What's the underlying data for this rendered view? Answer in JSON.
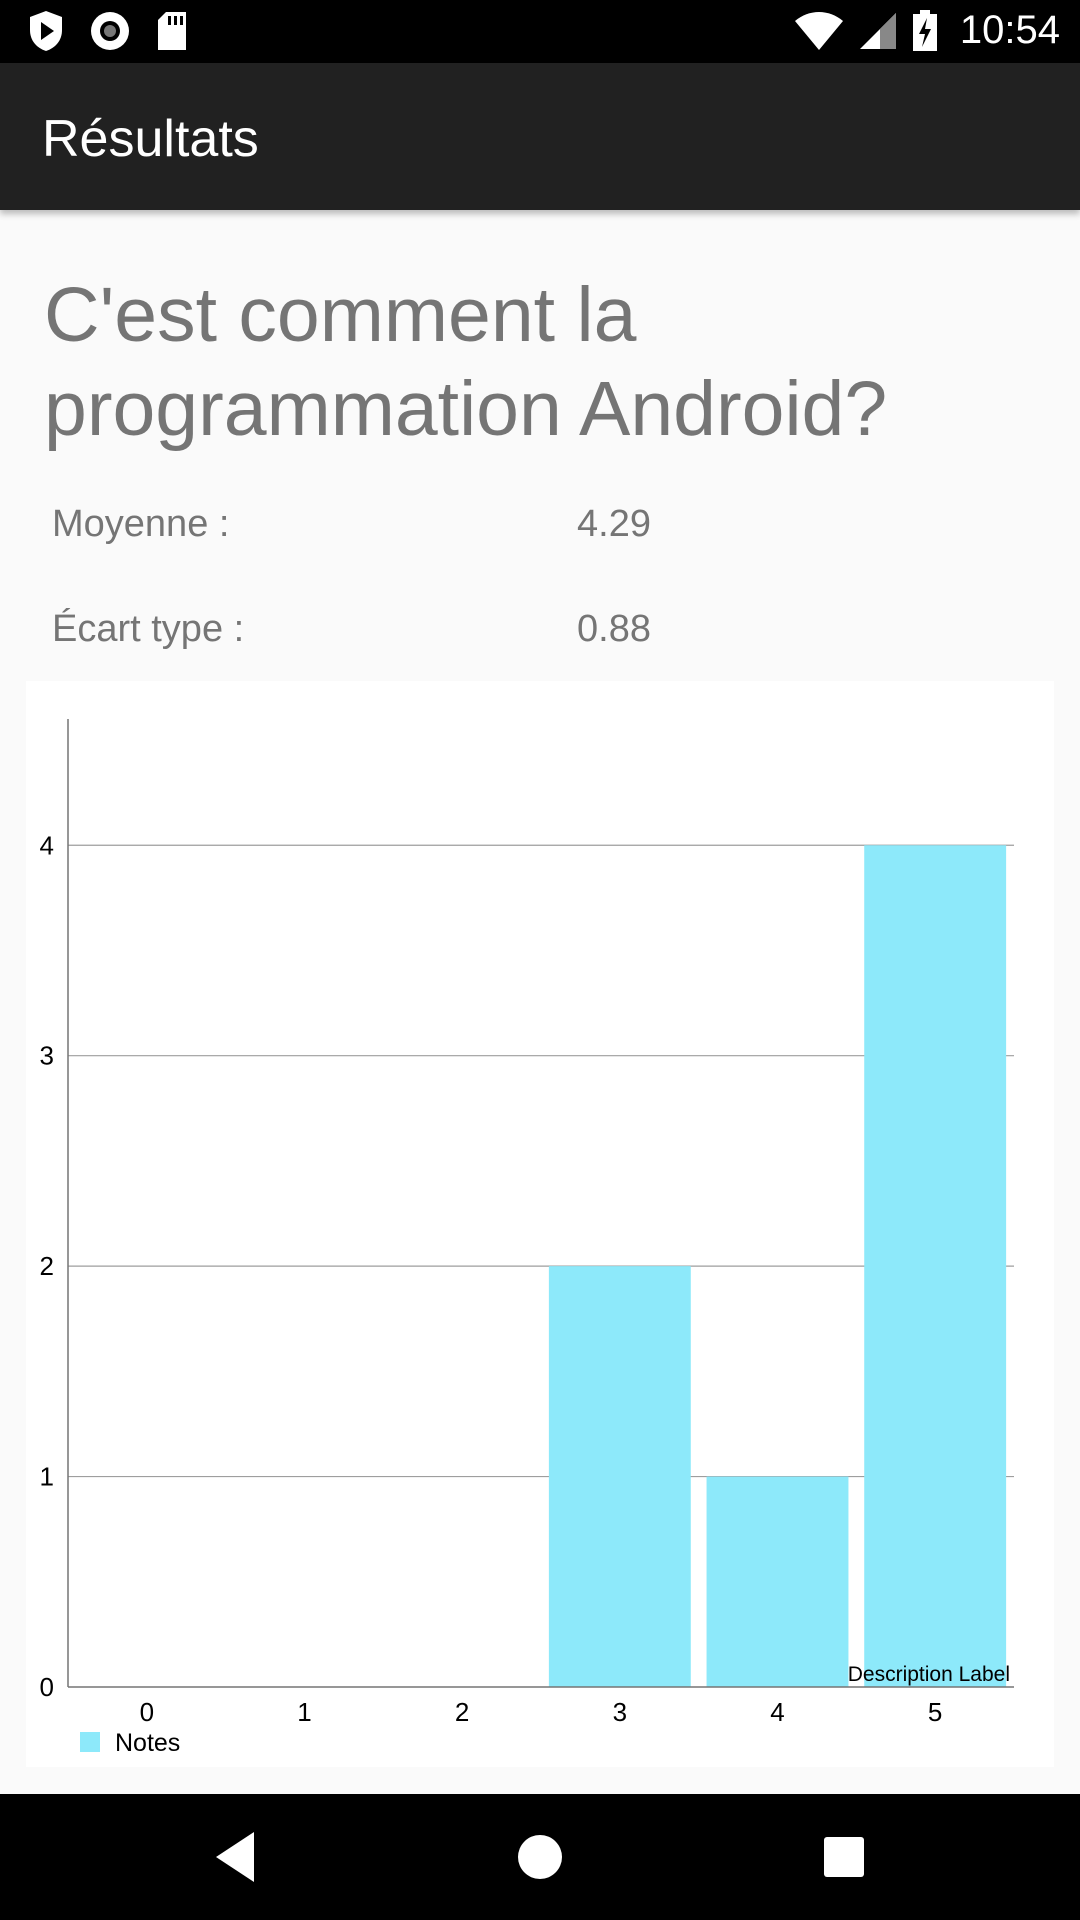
{
  "status_bar": {
    "time": "10:54",
    "icons": [
      "play-shield-icon",
      "record-icon",
      "sd-card-icon",
      "wifi-icon",
      "signal-icon",
      "battery-charging-icon"
    ]
  },
  "app_bar": {
    "title": "Résultats"
  },
  "question": "C'est comment la programmation Android?",
  "stats": {
    "mean_label": "Moyenne :",
    "mean_value": "4.29",
    "stddev_label": "Écart type :",
    "stddev_value": "0.88"
  },
  "chart_data": {
    "type": "bar",
    "categories": [
      "0",
      "1",
      "2",
      "3",
      "4",
      "5"
    ],
    "values": [
      0,
      0,
      0,
      2,
      1,
      4
    ],
    "series": [
      {
        "name": "Notes",
        "values": [
          0,
          0,
          0,
          2,
          1,
          4
        ]
      }
    ],
    "y_ticks": [
      "0",
      "1",
      "2",
      "3",
      "4"
    ],
    "ylim": [
      0,
      4.6
    ],
    "description": "Description Label",
    "legend_position": "bottom-left",
    "grid": true,
    "bar_color": "#8DE9FA"
  },
  "nav_bar": {
    "icons": [
      "back-icon",
      "home-icon",
      "recents-icon"
    ]
  }
}
